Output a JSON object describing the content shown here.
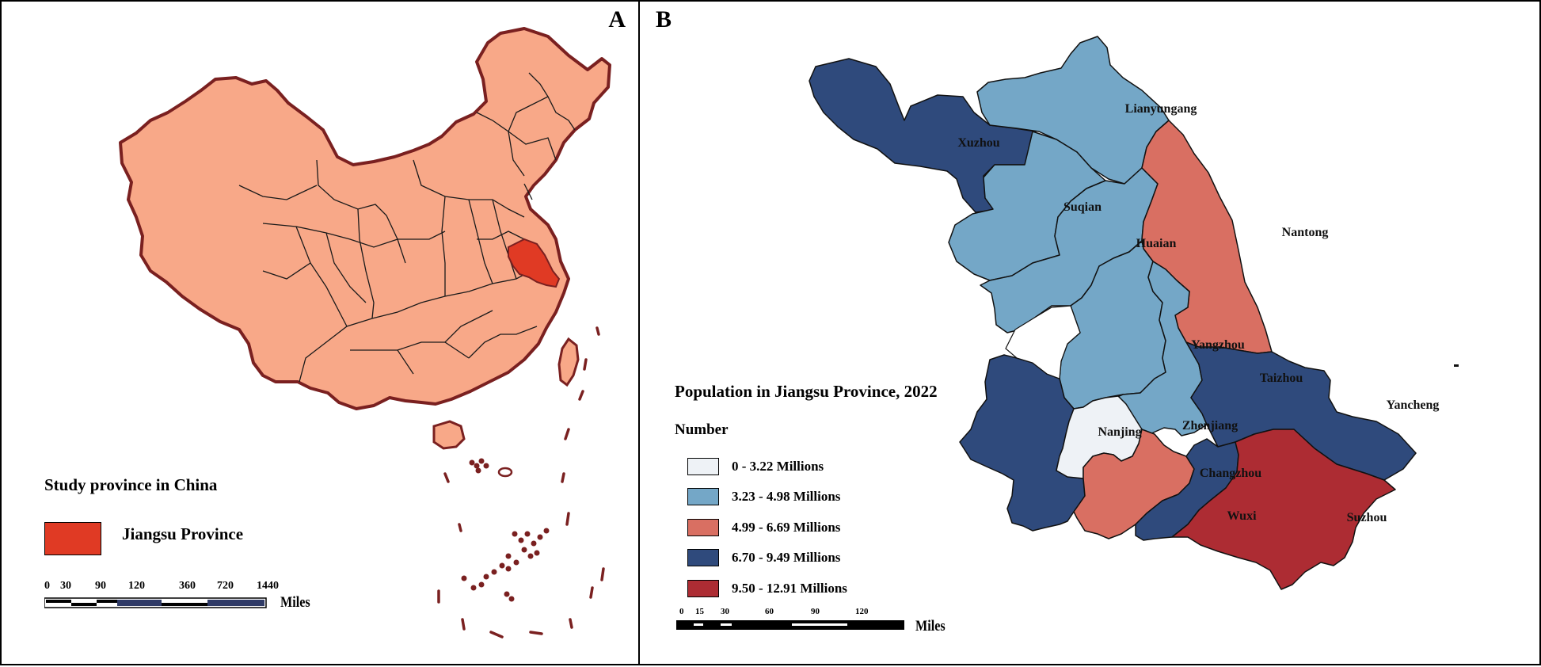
{
  "panel_a": {
    "letter": "A",
    "legend_title": "Study province in China",
    "legend_item": {
      "label": "Jiangsu Province",
      "color": "#e03a24"
    },
    "scale_ticks": [
      "0",
      "30",
      "90",
      "120",
      "360",
      "720",
      "1440"
    ],
    "scale_units": "Miles",
    "colors": {
      "china_fill": "#f8a888",
      "border": "#7a2020",
      "highlight": "#e03a24"
    }
  },
  "panel_b": {
    "letter": "B",
    "legend_title": "Population in Jiangsu Province, 2022",
    "legend_subtitle": "Number",
    "legend_items": [
      {
        "label": "0 - 3.22 Millions",
        "color": "#eef2f6"
      },
      {
        "label": "3.23 - 4.98 Millions",
        "color": "#74a7c7"
      },
      {
        "label": "4.99 - 6.69 Millions",
        "color": "#d96f62"
      },
      {
        "label": "6.70 - 9.49 Millions",
        "color": "#2f4a7c"
      },
      {
        "label": "9.50 - 12.91 Millions",
        "color": "#ad2c33"
      }
    ],
    "scale_ticks": [
      "0",
      "15",
      "30",
      "60",
      "90",
      "120"
    ],
    "scale_units": "Miles",
    "cities": [
      {
        "name": "Xuzhou",
        "class": 4
      },
      {
        "name": "Lianyungang",
        "class": 2
      },
      {
        "name": "Suqian",
        "class": 2
      },
      {
        "name": "Huaian",
        "class": 2
      },
      {
        "name": "Nantong",
        "class": 3
      },
      {
        "name": "Yangzhou",
        "class": 2
      },
      {
        "name": "Taizhou",
        "class": 2
      },
      {
        "name": "Yancheng",
        "class": 4
      },
      {
        "name": "Nanjing",
        "class": 4
      },
      {
        "name": "Zhenjiang",
        "class": 1
      },
      {
        "name": "Changzhou",
        "class": 3
      },
      {
        "name": "Wuxi",
        "class": 4
      },
      {
        "name": "Suzhou",
        "class": 5
      }
    ]
  }
}
